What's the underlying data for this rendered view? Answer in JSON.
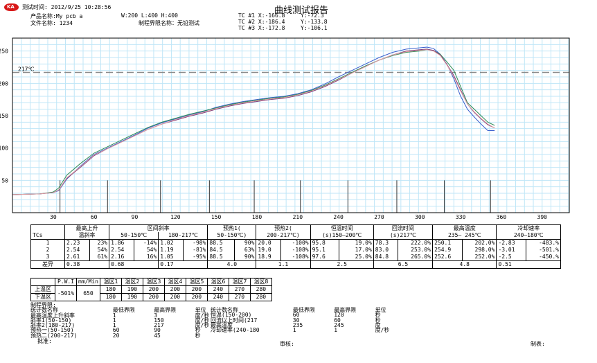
{
  "header": {
    "logo_text": "KA",
    "title": "曲线测试报告",
    "test_time": "测试时间: 2012/9/25 10:28:56",
    "product": "产品名称:My pcb a",
    "file": "文件名称: 1234",
    "dims": "W:200    L:400    H:400",
    "process_limit": "制程界限名称：无铅测试",
    "tc": [
      {
        "label": "TC #1 X:-166.8",
        "y": "Y:-72.3"
      },
      {
        "label": "TC #2 X:-186.4",
        "y": "Y:-133.8"
      },
      {
        "label": "TC #3 X:-172.8",
        "y": "Y:-106.1"
      }
    ]
  },
  "chart_data": {
    "type": "line",
    "xlim": [
      0,
      410
    ],
    "ylim": [
      0,
      270
    ],
    "xticks": [
      30,
      60,
      90,
      120,
      150,
      180,
      210,
      240,
      270,
      300,
      330,
      360,
      390
    ],
    "yticks": [
      50,
      100,
      150,
      200,
      250
    ],
    "reference_line": {
      "value": 217,
      "label": "217℃"
    },
    "zone_lines_x": [
      35,
      70,
      109,
      145,
      178,
      212,
      247,
      283,
      318,
      352
    ],
    "series": [
      {
        "color": "#3a5fcd",
        "x": [
          0,
          20,
          30,
          34,
          40,
          50,
          60,
          70,
          80,
          90,
          100,
          110,
          120,
          130,
          140,
          150,
          160,
          170,
          180,
          190,
          200,
          210,
          220,
          230,
          240,
          250,
          260,
          270,
          280,
          290,
          300,
          305,
          310,
          315,
          320,
          325,
          330,
          335,
          340,
          345,
          350,
          355
        ],
        "y": [
          28,
          29,
          31,
          34,
          52,
          72,
          90,
          100,
          110,
          120,
          131,
          139,
          145,
          151,
          156,
          163,
          168,
          172,
          175,
          178,
          180,
          184,
          190,
          199,
          210,
          220,
          230,
          240,
          248,
          253,
          255,
          256,
          254,
          245,
          229,
          207,
          180,
          160,
          148,
          137,
          127,
          127
        ]
      },
      {
        "color": "#2e8b57",
        "x": [
          0,
          20,
          30,
          34,
          40,
          50,
          60,
          70,
          80,
          90,
          100,
          110,
          120,
          130,
          140,
          150,
          160,
          170,
          180,
          190,
          200,
          210,
          220,
          230,
          240,
          250,
          260,
          270,
          280,
          290,
          300,
          305,
          310,
          315,
          320,
          325,
          330,
          335,
          340,
          345,
          350,
          355
        ],
        "y": [
          28,
          29,
          32,
          38,
          58,
          76,
          92,
          102,
          112,
          122,
          132,
          140,
          146,
          152,
          157,
          162,
          167,
          171,
          174,
          177,
          179,
          183,
          189,
          197,
          207,
          217,
          227,
          236,
          243,
          248,
          250,
          252,
          251,
          245,
          233,
          220,
          195,
          170,
          160,
          150,
          140,
          135
        ]
      },
      {
        "color": "#7b3a7b",
        "x": [
          0,
          20,
          30,
          34,
          40,
          50,
          60,
          70,
          80,
          90,
          100,
          110,
          120,
          130,
          140,
          150,
          160,
          170,
          180,
          190,
          200,
          210,
          220,
          230,
          240,
          250,
          260,
          270,
          280,
          290,
          300,
          305,
          310,
          315,
          320,
          325,
          330,
          335,
          340,
          345,
          350,
          355
        ],
        "y": [
          28,
          29,
          31,
          35,
          53,
          70,
          88,
          99,
          109,
          119,
          129,
          137,
          143,
          149,
          154,
          160,
          165,
          169,
          172,
          175,
          177,
          181,
          187,
          195,
          205,
          216,
          226,
          236,
          244,
          250,
          252,
          253,
          251,
          244,
          229,
          212,
          190,
          168,
          155,
          145,
          136,
          131
        ]
      },
      {
        "color": "#e0a0a0",
        "x": [
          0,
          20,
          30,
          34,
          40,
          50,
          60,
          70,
          80,
          90,
          100,
          110,
          120,
          130,
          140,
          150,
          160,
          170,
          180,
          190,
          200,
          210,
          220,
          230,
          240,
          250,
          260,
          270,
          280,
          290,
          300,
          305,
          310,
          315,
          320,
          325,
          330,
          335,
          340,
          345,
          350,
          355
        ],
        "y": [
          28,
          29,
          31,
          35,
          54,
          71,
          89,
          99,
          109,
          119,
          129,
          137,
          144,
          150,
          155,
          161,
          166,
          170,
          173,
          176,
          178,
          182,
          188,
          196,
          206,
          216,
          226,
          236,
          244,
          249,
          251,
          252,
          250,
          243,
          228,
          210,
          188,
          168,
          156,
          146,
          137,
          131
        ]
      }
    ]
  },
  "table1": {
    "headers_row1": [
      "",
      "最高上升",
      "",
      "区间斜率",
      "",
      "",
      "",
      "预热1(",
      "",
      "预热2(",
      "",
      "恒温时间",
      "",
      "回流时间",
      "",
      "最高温度",
      "",
      "冷却速率",
      ""
    ],
    "h": {
      "tcs": "TCs",
      "max_rise": "最高上升",
      "slope_rate": "温斜率",
      "interval": "区间斜率",
      "r1": "50-150℃",
      "r2": "180-217℃",
      "pre1": "预热1(",
      "pre1b": "50-150℃)",
      "pre2": "预热2(",
      "pre2b": "200-217℃)",
      "soak": "恒温时间",
      "soakb": "(s)150—200℃",
      "reflow": "回流时间",
      "reflowb": "(s)217℃",
      "peak": "最高温度",
      "peakb": "235— 245℃",
      "cool": "冷却速率",
      "coolb": "240—180℃"
    },
    "rows": [
      [
        "1",
        "2.23",
        "23%",
        "1.86",
        "-14%",
        "1.02",
        "-98%",
        "88.5",
        "90%",
        "20.0",
        "-100%",
        "95.8",
        "19.0%",
        "78.3",
        "222.0%",
        "250.1",
        "202.0%",
        "-2.83",
        "-483.%"
      ],
      [
        "2",
        "2.54",
        "54%",
        "2.54",
        "54%",
        "1.19",
        "-81%",
        "84.5",
        "63%",
        "19.0",
        "-108%",
        "95.1",
        "17.0%",
        "83.0",
        "253.0%",
        "254.9",
        "298.0%",
        "-3.01",
        "-501.%"
      ],
      [
        "3",
        "2.61",
        "61%",
        "2.16",
        "16%",
        "1.05",
        "-95%",
        "88.5",
        "90%",
        "18.9",
        "-108%",
        "97.6",
        "25.0%",
        "84.8",
        "265.0%",
        "252.6",
        "252.0%",
        "-2.5",
        "-450.%"
      ]
    ],
    "diff": {
      "label": "差异",
      "values": [
        "0.38",
        "0.68",
        "0.17",
        "4.0",
        "1.1",
        "2.5",
        "6.5",
        "4.8",
        "0.51"
      ]
    }
  },
  "table2": {
    "pwi_label": "P.W.I",
    "speed_label": "mm/Min",
    "pwi_value": "-501%",
    "speed_value": "650",
    "zones": [
      "温区1",
      "温区2",
      "温区3",
      "温区4",
      "温区5",
      "温区6",
      "温区7",
      "温区8"
    ],
    "upper_label": "上温区",
    "lower_label": "下温区",
    "upper": [
      "180",
      "190",
      "200",
      "200",
      "200",
      "240",
      "270",
      "280"
    ],
    "lower": [
      "180",
      "190",
      "200",
      "200",
      "200",
      "240",
      "270",
      "280"
    ]
  },
  "criteria": {
    "heading": "制程界限:",
    "left_cols": [
      "统计数名称",
      "最低界限",
      "最高界限",
      "单位"
    ],
    "left_rows": [
      [
        "最高温度上升斜率",
        "1",
        "3",
        "度/秒"
      ],
      [
        "斜率1(50-150)",
        "1",
        "150",
        "度/秒"
      ],
      [
        "斜率2(180-217)",
        "1",
        "217",
        "度/秒"
      ],
      [
        "预热一(50-150)",
        "60",
        "90",
        "秒"
      ],
      [
        "预热二(200-217)",
        "20",
        "45",
        "秒"
      ]
    ],
    "right_cols": [
      "统计数名称",
      "最低界限",
      "最高界限",
      "单位"
    ],
    "right_rows": [
      [
        "恒温(150-200)",
        "60",
        "120",
        "秒"
      ],
      [
        "回流以上时间(217",
        "30",
        "60",
        "秒"
      ],
      [
        "最高温度",
        "235",
        "245",
        "度"
      ],
      [
        "冷却速率(240-180",
        "1",
        "1",
        "度/秒"
      ]
    ],
    "approve": "批准:",
    "review": "审核:",
    "made": "制表:"
  }
}
